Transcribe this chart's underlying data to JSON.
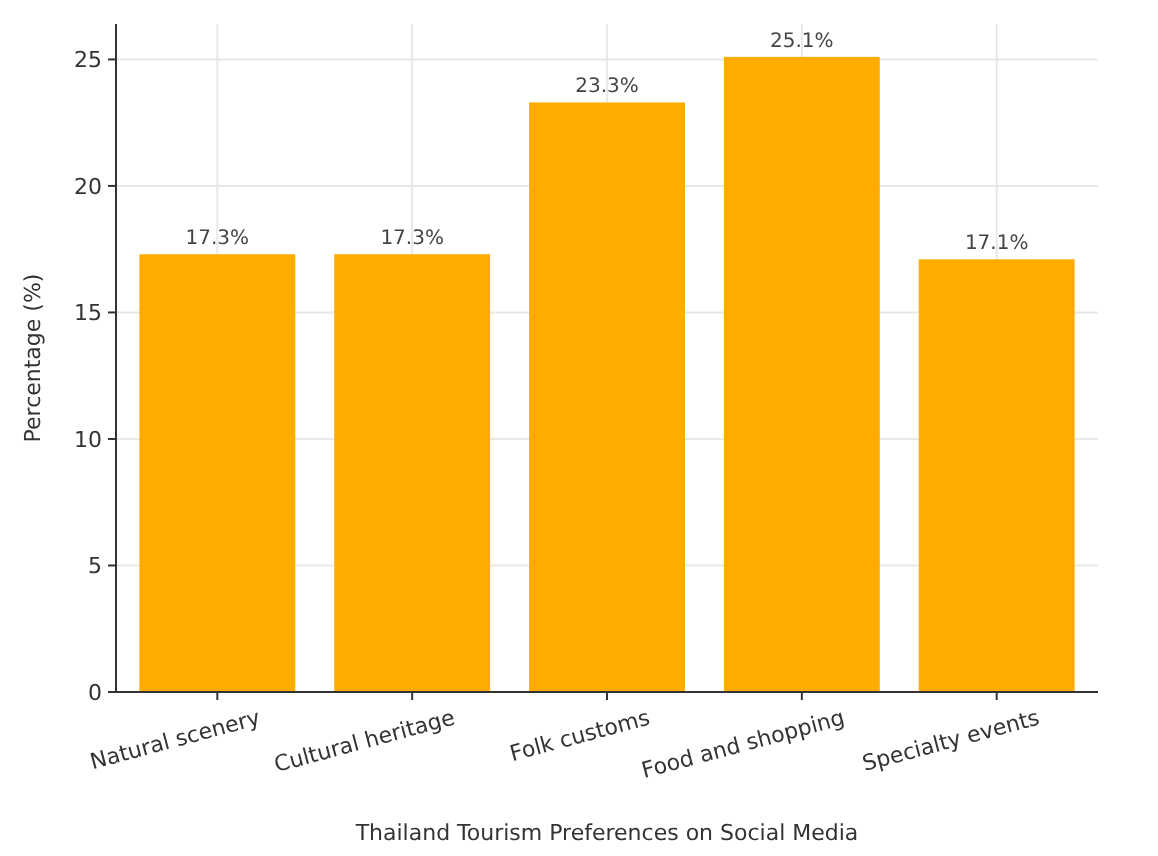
{
  "chart_data": {
    "type": "bar",
    "xlabel": "Thailand Tourism Preferences on Social Media",
    "ylabel": "Percentage (%)",
    "categories": [
      "Natural scenery",
      "Cultural heritage",
      "Folk customs",
      "Food and shopping",
      "Specialty events"
    ],
    "values": [
      17.3,
      17.3,
      23.3,
      25.1,
      17.1
    ],
    "value_labels": [
      "17.3%",
      "17.3%",
      "23.3%",
      "25.1%",
      "17.1%"
    ],
    "color": "#ffab00",
    "ylim": [
      0,
      26.4
    ],
    "yticks": [
      0,
      5,
      10,
      15,
      20,
      25
    ],
    "grid": true
  }
}
